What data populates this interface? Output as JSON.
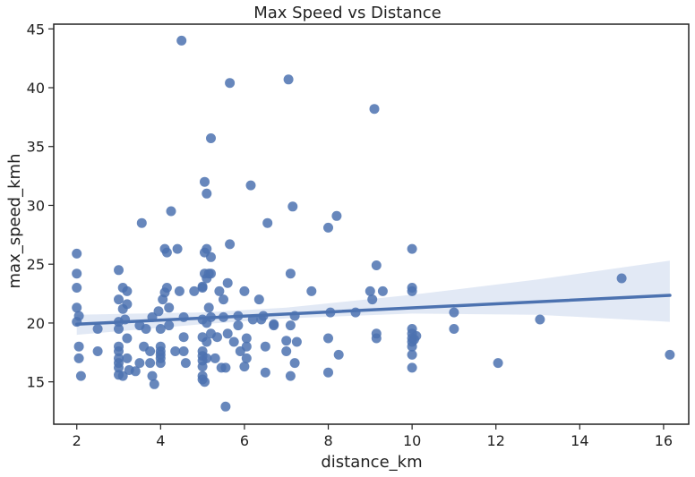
{
  "chart_data": {
    "type": "scatter",
    "title": "Max Speed vs Distance",
    "xlabel": "distance_km",
    "ylabel": "max_speed_kmh",
    "xlim": [
      1.45,
      16.6
    ],
    "ylim": [
      11.4,
      45.4
    ],
    "xticks": [
      2,
      4,
      6,
      8,
      10,
      12,
      14,
      16
    ],
    "yticks": [
      15,
      20,
      25,
      30,
      35,
      40,
      45
    ],
    "grid": false,
    "legend": "none",
    "colors": {
      "point": "#4c72b0",
      "line": "#4c72b0",
      "band": "#dde5f3",
      "axis": "#222222"
    },
    "regression": {
      "x_start": 2.0,
      "x_end": 16.15,
      "y_start": 19.9,
      "y_end": 22.35,
      "ci_lower": [
        [
          2.0,
          19.0
        ],
        [
          5.0,
          19.9
        ],
        [
          7.0,
          20.4
        ],
        [
          10.0,
          20.8
        ],
        [
          13.0,
          20.7
        ],
        [
          16.15,
          20.1
        ]
      ],
      "ci_upper": [
        [
          2.0,
          20.7
        ],
        [
          5.0,
          20.9
        ],
        [
          7.0,
          21.3
        ],
        [
          10.0,
          22.4
        ],
        [
          13.0,
          23.7
        ],
        [
          16.15,
          25.3
        ]
      ]
    },
    "points": [
      [
        2.0,
        25.9
      ],
      [
        2.0,
        24.2
      ],
      [
        2.0,
        23.0
      ],
      [
        2.0,
        21.3
      ],
      [
        2.05,
        20.6
      ],
      [
        2.0,
        20.1
      ],
      [
        2.05,
        18.0
      ],
      [
        2.05,
        17.0
      ],
      [
        2.1,
        15.5
      ],
      [
        2.5,
        19.5
      ],
      [
        2.5,
        17.6
      ],
      [
        3.0,
        24.5
      ],
      [
        3.0,
        22.0
      ],
      [
        3.0,
        20.1
      ],
      [
        3.0,
        19.5
      ],
      [
        3.0,
        18.0
      ],
      [
        3.0,
        17.6
      ],
      [
        3.0,
        17.0
      ],
      [
        3.0,
        16.6
      ],
      [
        3.0,
        16.2
      ],
      [
        3.0,
        15.6
      ],
      [
        3.1,
        23.0
      ],
      [
        3.1,
        21.2
      ],
      [
        3.15,
        20.3
      ],
      [
        3.2,
        22.7
      ],
      [
        3.2,
        21.6
      ],
      [
        3.2,
        18.7
      ],
      [
        3.2,
        17.0
      ],
      [
        3.1,
        15.5
      ],
      [
        3.25,
        16.0
      ],
      [
        3.4,
        15.9
      ],
      [
        3.5,
        19.8
      ],
      [
        3.5,
        16.6
      ],
      [
        3.55,
        28.5
      ],
      [
        3.6,
        18.0
      ],
      [
        3.65,
        19.5
      ],
      [
        3.75,
        17.6
      ],
      [
        3.75,
        16.6
      ],
      [
        3.8,
        20.5
      ],
      [
        3.8,
        15.5
      ],
      [
        3.85,
        14.8
      ],
      [
        3.95,
        21.0
      ],
      [
        4.0,
        19.5
      ],
      [
        4.0,
        18.0
      ],
      [
        4.0,
        17.6
      ],
      [
        4.0,
        17.3
      ],
      [
        4.0,
        17.0
      ],
      [
        4.0,
        16.6
      ],
      [
        4.05,
        22.0
      ],
      [
        4.1,
        22.6
      ],
      [
        4.1,
        26.3
      ],
      [
        4.15,
        26.0
      ],
      [
        4.15,
        23.0
      ],
      [
        4.2,
        21.3
      ],
      [
        4.2,
        19.8
      ],
      [
        4.25,
        29.5
      ],
      [
        4.35,
        17.6
      ],
      [
        4.4,
        26.3
      ],
      [
        4.45,
        22.7
      ],
      [
        4.5,
        44.0
      ],
      [
        4.55,
        20.5
      ],
      [
        4.55,
        18.8
      ],
      [
        4.55,
        17.6
      ],
      [
        4.6,
        16.6
      ],
      [
        4.8,
        22.7
      ],
      [
        5.0,
        23.0
      ],
      [
        5.0,
        20.3
      ],
      [
        5.0,
        18.8
      ],
      [
        5.0,
        17.6
      ],
      [
        5.0,
        17.2
      ],
      [
        5.0,
        16.8
      ],
      [
        5.0,
        16.3
      ],
      [
        5.0,
        15.5
      ],
      [
        5.0,
        15.2
      ],
      [
        5.0,
        23.1
      ],
      [
        5.05,
        32.0
      ],
      [
        5.05,
        26.0
      ],
      [
        5.05,
        24.2
      ],
      [
        5.05,
        15.0
      ],
      [
        5.1,
        31.0
      ],
      [
        5.1,
        26.3
      ],
      [
        5.1,
        23.8
      ],
      [
        5.1,
        20.0
      ],
      [
        5.1,
        18.4
      ],
      [
        5.1,
        17.0
      ],
      [
        5.15,
        24.2
      ],
      [
        5.15,
        21.3
      ],
      [
        5.2,
        35.7
      ],
      [
        5.2,
        25.6
      ],
      [
        5.2,
        24.2
      ],
      [
        5.2,
        20.5
      ],
      [
        5.2,
        19.1
      ],
      [
        5.3,
        17.0
      ],
      [
        5.35,
        18.8
      ],
      [
        5.4,
        22.7
      ],
      [
        5.45,
        16.2
      ],
      [
        5.5,
        22.0
      ],
      [
        5.5,
        20.5
      ],
      [
        5.55,
        16.2
      ],
      [
        5.55,
        12.9
      ],
      [
        5.6,
        23.4
      ],
      [
        5.6,
        19.1
      ],
      [
        5.65,
        26.7
      ],
      [
        5.65,
        40.4
      ],
      [
        5.75,
        18.4
      ],
      [
        5.85,
        20.6
      ],
      [
        5.85,
        19.8
      ],
      [
        5.9,
        17.6
      ],
      [
        6.0,
        22.7
      ],
      [
        6.0,
        16.3
      ],
      [
        6.05,
        18.7
      ],
      [
        6.05,
        18.0
      ],
      [
        6.05,
        17.0
      ],
      [
        6.15,
        31.7
      ],
      [
        6.2,
        20.3
      ],
      [
        6.35,
        22.0
      ],
      [
        6.4,
        20.3
      ],
      [
        6.45,
        20.6
      ],
      [
        6.5,
        15.8
      ],
      [
        6.5,
        18.0
      ],
      [
        6.55,
        28.5
      ],
      [
        6.7,
        19.9
      ],
      [
        6.7,
        19.8
      ],
      [
        7.0,
        17.6
      ],
      [
        7.0,
        18.5
      ],
      [
        7.05,
        40.7
      ],
      [
        7.1,
        24.2
      ],
      [
        7.1,
        19.8
      ],
      [
        7.1,
        15.5
      ],
      [
        7.15,
        29.9
      ],
      [
        7.2,
        20.6
      ],
      [
        7.2,
        16.6
      ],
      [
        7.25,
        18.4
      ],
      [
        7.6,
        22.7
      ],
      [
        8.0,
        28.1
      ],
      [
        8.0,
        18.7
      ],
      [
        8.0,
        15.8
      ],
      [
        8.05,
        20.9
      ],
      [
        8.2,
        29.1
      ],
      [
        8.25,
        17.3
      ],
      [
        8.65,
        20.9
      ],
      [
        9.0,
        22.7
      ],
      [
        9.05,
        22.0
      ],
      [
        9.1,
        38.2
      ],
      [
        9.15,
        24.9
      ],
      [
        9.15,
        19.1
      ],
      [
        9.15,
        18.7
      ],
      [
        9.3,
        22.7
      ],
      [
        10.0,
        26.3
      ],
      [
        10.0,
        23.0
      ],
      [
        10.0,
        22.7
      ],
      [
        10.0,
        19.5
      ],
      [
        10.0,
        19.1
      ],
      [
        10.0,
        18.7
      ],
      [
        10.0,
        18.4
      ],
      [
        10.0,
        18.0
      ],
      [
        10.0,
        17.3
      ],
      [
        10.0,
        16.2
      ],
      [
        10.05,
        18.6
      ],
      [
        10.1,
        18.9
      ],
      [
        11.0,
        20.9
      ],
      [
        11.0,
        19.5
      ],
      [
        12.05,
        16.6
      ],
      [
        13.05,
        20.3
      ],
      [
        15.0,
        23.8
      ],
      [
        16.15,
        17.3
      ]
    ]
  }
}
